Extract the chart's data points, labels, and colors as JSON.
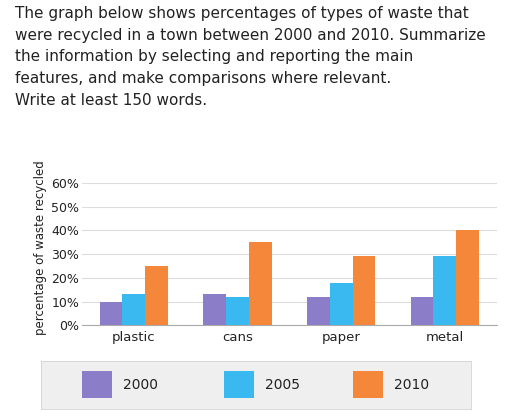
{
  "categories": [
    "plastic",
    "cans",
    "paper",
    "metal"
  ],
  "years": [
    "2000",
    "2005",
    "2010"
  ],
  "values": {
    "2000": [
      10,
      13,
      12,
      12
    ],
    "2005": [
      13,
      12,
      18,
      29
    ],
    "2010": [
      25,
      35,
      29,
      40
    ]
  },
  "colors": {
    "2000": "#8b7dc8",
    "2005": "#3ab8f0",
    "2010": "#f4873a"
  },
  "ylabel": "percentage of waste recycled",
  "yticks": [
    0,
    10,
    20,
    30,
    40,
    50,
    60
  ],
  "ytick_labels": [
    "0%",
    "10%",
    "20%",
    "30%",
    "40%",
    "50%",
    "60%"
  ],
  "ylim": [
    0,
    65
  ],
  "background_color": "#ffffff",
  "plot_bg_color": "#ffffff",
  "grid_color": "#dddddd",
  "text_color": "#222222",
  "header_lines": [
    "The graph below shows percentages of types of waste that",
    "were recycled in a town between 2000 and 2010. Summarize",
    "the information by selecting and reporting the main",
    "features, and make comparisons where relevant.",
    "Write at least 150 words."
  ],
  "header_fontsize": 11.0,
  "legend_bg": "#efefef",
  "bar_width": 0.22
}
